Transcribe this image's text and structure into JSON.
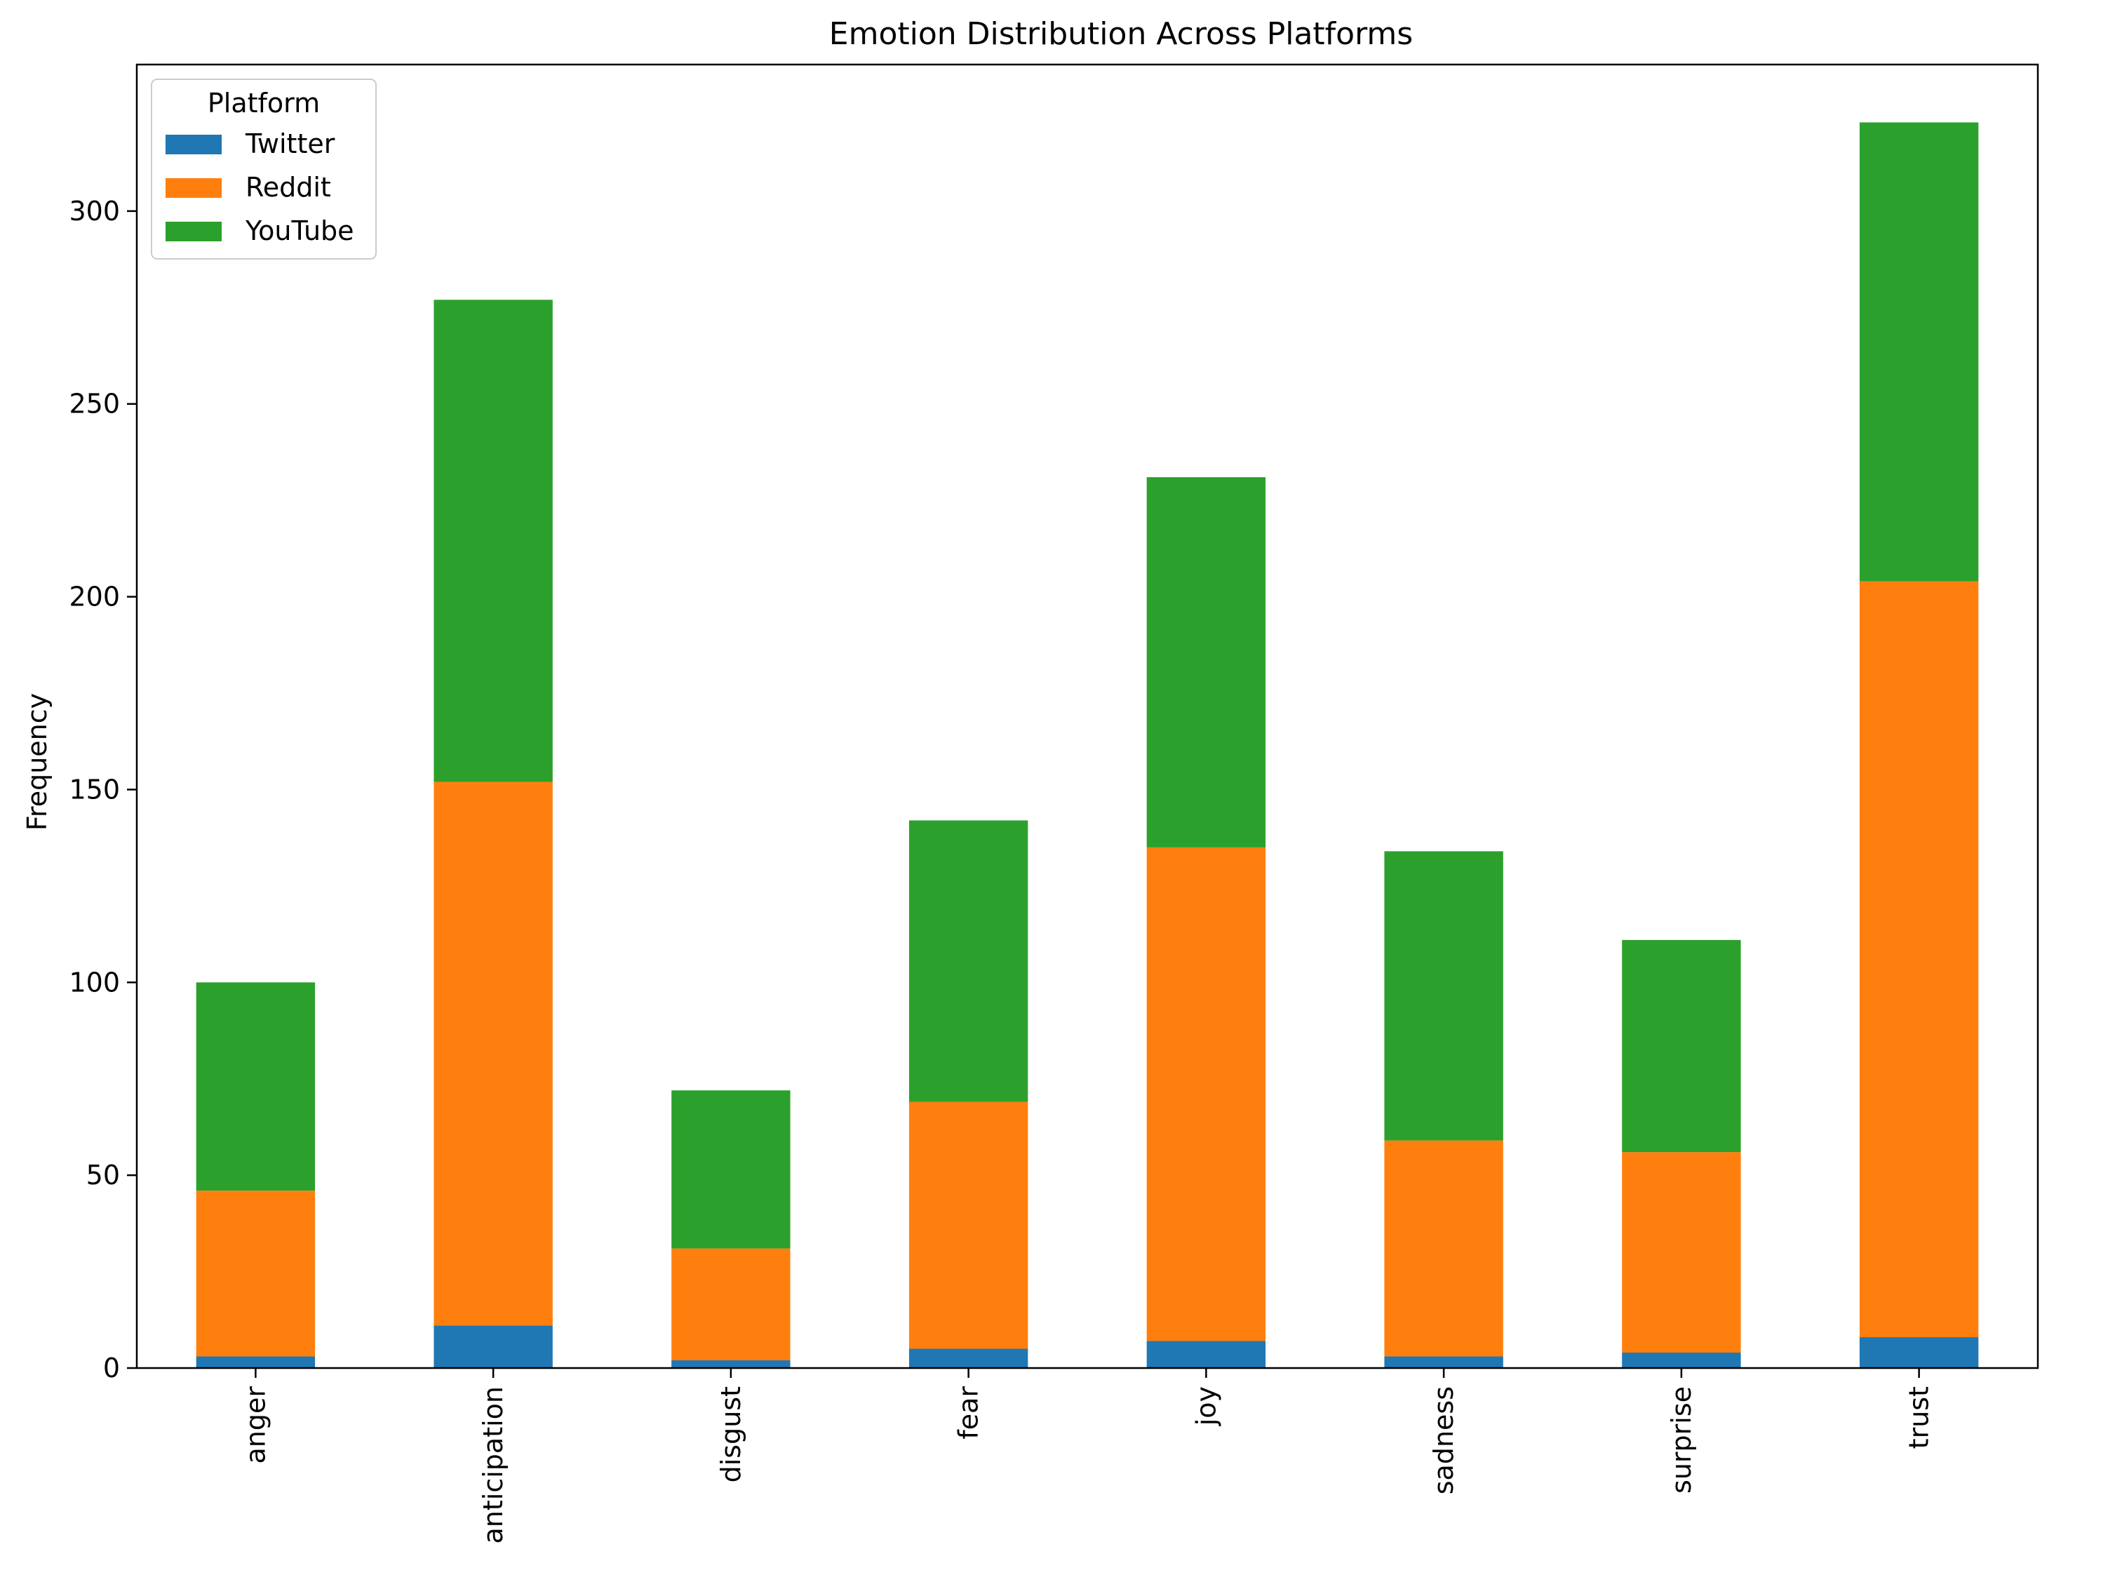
{
  "chart_data": {
    "type": "bar",
    "stacked": true,
    "title": "Emotion Distribution Across Platforms",
    "xlabel": "",
    "ylabel": "Frequency",
    "ylim": [
      0,
      338
    ],
    "yticks": [
      0,
      50,
      100,
      150,
      200,
      250,
      300
    ],
    "categories": [
      "anger",
      "anticipation",
      "disgust",
      "fear",
      "joy",
      "sadness",
      "surprise",
      "trust"
    ],
    "series": [
      {
        "name": "Twitter",
        "color": "#1f77b4",
        "values": [
          3,
          11,
          2,
          5,
          7,
          3,
          4,
          8
        ]
      },
      {
        "name": "Reddit",
        "color": "#ff7f0e",
        "values": [
          43,
          141,
          29,
          64,
          128,
          56,
          52,
          196
        ]
      },
      {
        "name": "YouTube",
        "color": "#2ca02c",
        "values": [
          54,
          125,
          41,
          73,
          96,
          75,
          55,
          119
        ]
      }
    ],
    "legend": {
      "title": "Platform",
      "position": "top-left"
    },
    "grid": false
  }
}
